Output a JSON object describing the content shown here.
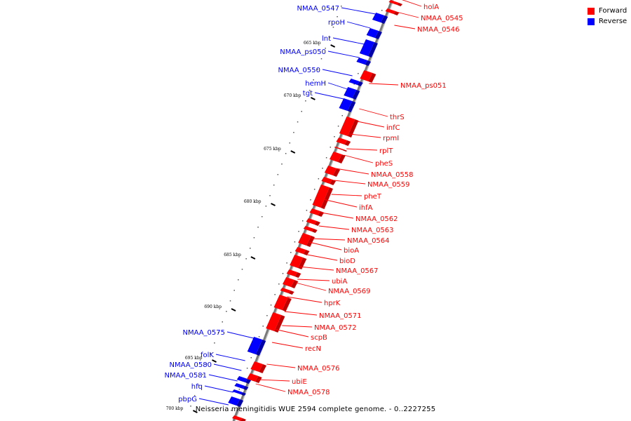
{
  "legend": {
    "forward_label": "Forward",
    "reverse_label": "Reverse",
    "forward_color": "#ff0000",
    "reverse_color": "#0000ff"
  },
  "caption": "Neisseria meningitidis WUE 2594 complete genome. - 0..2227255",
  "ticks": [
    "665 kbp",
    "670 kbp",
    "675 kbp",
    "680 kbp",
    "685 kbp",
    "690 kbp",
    "695 kbp",
    "700 kbp"
  ],
  "forward_genes": [
    "holA",
    "NMAA_0545",
    "NMAA_0546",
    "NMAA_ps051",
    "thrS",
    "infC",
    "rpmI",
    "rplT",
    "pheS",
    "NMAA_0558",
    "NMAA_0559",
    "pheT",
    "ihfA",
    "NMAA_0562",
    "NMAA_0563",
    "NMAA_0564",
    "bioA",
    "bioD",
    "NMAA_0567",
    "ubiA",
    "NMAA_0569",
    "hprK",
    "NMAA_0571",
    "NMAA_0572",
    "scpB",
    "recN",
    "NMAA_0576",
    "ubiE",
    "NMAA_0578"
  ],
  "reverse_genes": [
    "NMAA_0547",
    "rpoH",
    "lnt",
    "NMAA_ps050",
    "NMAA_0550",
    "hemH",
    "tgt",
    "NMAA_0575",
    "folK",
    "NMAA_0580",
    "NMAA_0581",
    "hfq",
    "pbpG"
  ]
}
